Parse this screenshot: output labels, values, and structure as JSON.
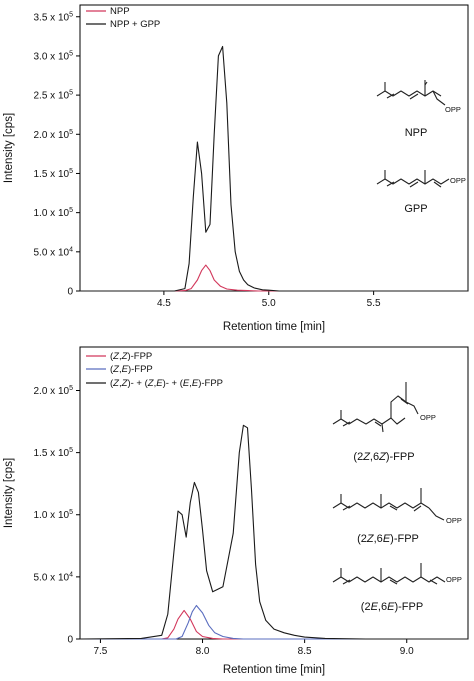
{
  "chart_data": [
    {
      "type": "line",
      "xlabel": "Retention time [min]",
      "ylabel": "Intensity [cps]",
      "xlim": [
        4.1,
        5.95
      ],
      "ylim": [
        0,
        365000
      ],
      "x_ticks": [
        4.5,
        5.0,
        5.5
      ],
      "x_tick_labels": [
        "4.5",
        "5.0",
        "5.5"
      ],
      "y_ticks": [
        0,
        50000,
        100000,
        150000,
        200000,
        250000,
        300000,
        350000
      ],
      "y_tick_labels": [
        {
          "mant": "0",
          "exp": ""
        },
        {
          "mant": "5.0 x 10",
          "exp": "4"
        },
        {
          "mant": "1.0 x 10",
          "exp": "5"
        },
        {
          "mant": "1.5 x 10",
          "exp": "5"
        },
        {
          "mant": "2.0 x 10",
          "exp": "5"
        },
        {
          "mant": "2.5 x 10",
          "exp": "5"
        },
        {
          "mant": "3.0 x 10",
          "exp": "5"
        },
        {
          "mant": "3.5 x 10",
          "exp": "5"
        }
      ],
      "grid": false,
      "legend_position": "top-left",
      "series": [
        {
          "name": "NPP",
          "color": "#d2385c",
          "x": [
            4.1,
            4.55,
            4.6,
            4.63,
            4.66,
            4.68,
            4.7,
            4.72,
            4.74,
            4.77,
            4.8,
            4.85,
            4.9,
            4.95,
            5.0,
            5.1,
            5.3,
            5.95
          ],
          "y": [
            0,
            0,
            500,
            3000,
            14000,
            26000,
            33000,
            26000,
            14000,
            6000,
            2500,
            1000,
            500,
            0,
            0,
            0,
            0,
            0
          ]
        },
        {
          "name": "NPP + GPP",
          "color": "#1a1a1a",
          "x": [
            4.1,
            4.55,
            4.6,
            4.62,
            4.64,
            4.66,
            4.68,
            4.7,
            4.72,
            4.74,
            4.76,
            4.78,
            4.8,
            4.82,
            4.84,
            4.86,
            4.88,
            4.9,
            4.93,
            4.97,
            5.0,
            5.05,
            5.1,
            5.3,
            5.95
          ],
          "y": [
            0,
            0,
            3000,
            35000,
            120000,
            190000,
            150000,
            75000,
            85000,
            200000,
            300000,
            312000,
            240000,
            110000,
            50000,
            25000,
            14000,
            8000,
            4000,
            1500,
            1000,
            0,
            0,
            0,
            0
          ]
        }
      ],
      "annotations": [
        "NPP",
        "GPP"
      ]
    },
    {
      "type": "line",
      "xlabel": "Retention time [min]",
      "ylabel": "Intensity [cps]",
      "xlim": [
        7.4,
        9.3
      ],
      "ylim": [
        0,
        235000
      ],
      "x_ticks": [
        7.5,
        8.0,
        8.5,
        9.0
      ],
      "x_tick_labels": [
        "7.5",
        "8.0",
        "8.5",
        "9.0"
      ],
      "y_ticks": [
        0,
        50000,
        100000,
        150000,
        200000
      ],
      "y_tick_labels": [
        {
          "mant": "0",
          "exp": ""
        },
        {
          "mant": "5.0 x 10",
          "exp": "4"
        },
        {
          "mant": "1.0 x 10",
          "exp": "5"
        },
        {
          "mant": "1.5 x 10",
          "exp": "5"
        },
        {
          "mant": "2.0 x 10",
          "exp": "5"
        }
      ],
      "grid": false,
      "legend_position": "top-left",
      "series": [
        {
          "name": "(Z,Z)-FPP",
          "color": "#d2385c",
          "x": [
            7.4,
            7.8,
            7.83,
            7.86,
            7.88,
            7.91,
            7.94,
            7.97,
            8.0,
            8.05,
            8.1,
            8.2,
            9.3
          ],
          "y": [
            0,
            0,
            1000,
            8000,
            16000,
            23000,
            16000,
            6000,
            2000,
            500,
            0,
            0,
            0
          ],
          "name_parts": [
            {
              "t": "(",
              "i": false
            },
            {
              "t": "Z",
              "i": true
            },
            {
              "t": ",",
              "i": false
            },
            {
              "t": "Z",
              "i": true
            },
            {
              "t": ")-FPP",
              "i": false
            }
          ]
        },
        {
          "name": "(Z,E)-FPP",
          "color": "#5a6dbf",
          "x": [
            7.4,
            7.87,
            7.9,
            7.93,
            7.95,
            7.97,
            8.0,
            8.03,
            8.06,
            8.1,
            8.15,
            8.2,
            9.3
          ],
          "y": [
            0,
            0,
            2000,
            13000,
            22000,
            27000,
            21000,
            11000,
            5000,
            2000,
            500,
            0,
            0
          ],
          "name_parts": [
            {
              "t": "(",
              "i": false
            },
            {
              "t": "Z",
              "i": true
            },
            {
              "t": ",",
              "i": false
            },
            {
              "t": "E",
              "i": true
            },
            {
              "t": ")-FPP",
              "i": false
            }
          ]
        },
        {
          "name": "(Z,Z)- + (Z,E)- + (E,E)-FPP",
          "color": "#1a1a1a",
          "x": [
            7.4,
            7.7,
            7.8,
            7.83,
            7.86,
            7.88,
            7.9,
            7.92,
            7.94,
            7.96,
            7.98,
            8.0,
            8.02,
            8.05,
            8.1,
            8.15,
            8.18,
            8.2,
            8.22,
            8.24,
            8.26,
            8.28,
            8.31,
            8.35,
            8.4,
            8.45,
            8.5,
            8.6,
            8.8,
            9.3
          ],
          "y": [
            0,
            500,
            3000,
            20000,
            70000,
            103000,
            100000,
            82000,
            110000,
            126000,
            118000,
            88000,
            55000,
            38000,
            42000,
            85000,
            150000,
            172000,
            170000,
            120000,
            60000,
            30000,
            15000,
            8000,
            5000,
            3000,
            1500,
            500,
            0,
            0
          ],
          "name_parts": [
            {
              "t": "(",
              "i": false
            },
            {
              "t": "Z",
              "i": true
            },
            {
              "t": ",",
              "i": false
            },
            {
              "t": "Z",
              "i": true
            },
            {
              "t": ")- + (",
              "i": false
            },
            {
              "t": "Z",
              "i": true
            },
            {
              "t": ",",
              "i": false
            },
            {
              "t": "E",
              "i": true
            },
            {
              "t": ")- + (",
              "i": false
            },
            {
              "t": "E",
              "i": true
            },
            {
              "t": ",",
              "i": false
            },
            {
              "t": "E",
              "i": true
            },
            {
              "t": ")-FPP",
              "i": false
            }
          ]
        }
      ],
      "annotations": [
        "(2Z,6Z)-FPP",
        "(2Z,6E)-FPP",
        "(2E,6E)-FPP"
      ]
    }
  ],
  "structures": {
    "npp_label": "NPP",
    "gpp_label": "GPP",
    "opp_text": "OPP",
    "zz_label": [
      {
        "t": "(2",
        "i": false
      },
      {
        "t": "Z",
        "i": true
      },
      {
        "t": ",6",
        "i": false
      },
      {
        "t": "Z",
        "i": true
      },
      {
        "t": ")-FPP",
        "i": false
      }
    ],
    "ze_label": [
      {
        "t": "(2",
        "i": false
      },
      {
        "t": "Z",
        "i": true
      },
      {
        "t": ",6",
        "i": false
      },
      {
        "t": "E",
        "i": true
      },
      {
        "t": ")-FPP",
        "i": false
      }
    ],
    "ee_label": [
      {
        "t": "(2",
        "i": false
      },
      {
        "t": "E",
        "i": true
      },
      {
        "t": ",6",
        "i": false
      },
      {
        "t": "E",
        "i": true
      },
      {
        "t": ")-FPP",
        "i": false
      }
    ]
  }
}
